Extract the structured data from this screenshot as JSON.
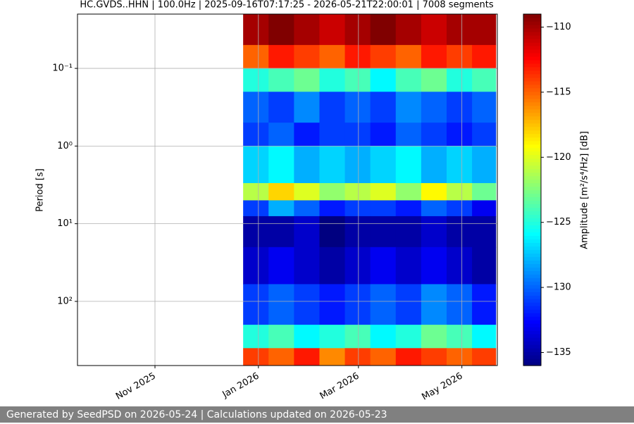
{
  "chart_data": {
    "type": "heatmap",
    "title": "HC.GVDS..HHN | 100.0Hz | 2025-09-16T07:17:25 - 2026-05-21T22:00:01 | 7008 segments",
    "ylabel": "Period [s]",
    "colorbar_label": "Amplitude [m²/s⁴/Hz] [dB]",
    "colormap": "jet",
    "grid": true,
    "yscale": "log",
    "yinverted": true,
    "xlim": [
      "2025-09-16T07:17:25",
      "2026-05-21T22:00:01"
    ],
    "xticks": [
      {
        "value": "2025-11-01",
        "label": "Nov 2025"
      },
      {
        "value": "2026-01-01",
        "label": "Jan 2026"
      },
      {
        "value": "2026-03-01",
        "label": "Mar 2026"
      },
      {
        "value": "2026-05-01",
        "label": "May 2026"
      }
    ],
    "ylim": [
      0.02,
      670
    ],
    "yticks": [
      {
        "value": 0.1,
        "label": "10⁻¹"
      },
      {
        "value": 1,
        "label": "10⁰"
      },
      {
        "value": 10,
        "label": "10¹"
      },
      {
        "value": 100,
        "label": "10²"
      }
    ],
    "clim": [
      -136,
      -109
    ],
    "cticks": [
      {
        "value": -110,
        "label": "−110"
      },
      {
        "value": -115,
        "label": "−115"
      },
      {
        "value": -120,
        "label": "−120"
      },
      {
        "value": -125,
        "label": "−125"
      },
      {
        "value": -130,
        "label": "−130"
      },
      {
        "value": -135,
        "label": "−135"
      }
    ],
    "x_edges": [
      "2025-12-23",
      "2026-01-07",
      "2026-01-22",
      "2026-02-06",
      "2026-02-21",
      "2026-03-08",
      "2026-03-23",
      "2026-04-07",
      "2026-04-22",
      "2026-05-07",
      "2026-05-21"
    ],
    "y_edges": [
      0.02,
      0.05,
      0.1,
      0.2,
      0.5,
      1,
      3,
      5,
      8,
      20,
      60,
      200,
      400,
      670
    ],
    "z": [
      [
        -110,
        -109,
        -110,
        -111,
        -110,
        -109,
        -110,
        -111,
        -110,
        -110
      ],
      [
        -115,
        -113,
        -114,
        -115,
        -113,
        -114,
        -115,
        -113,
        -114,
        -113
      ],
      [
        -125,
        -124,
        -123,
        -125,
        -124,
        -126,
        -124,
        -123,
        -125,
        -124
      ],
      [
        -130,
        -131,
        -129,
        -131,
        -130,
        -131,
        -129,
        -130,
        -131,
        -130
      ],
      [
        -131,
        -130,
        -132,
        -131,
        -131,
        -132,
        -130,
        -131,
        -132,
        -131
      ],
      [
        -127,
        -126,
        -128,
        -127,
        -128,
        -127,
        -126,
        -128,
        -127,
        -128
      ],
      [
        -121,
        -118,
        -120,
        -122,
        -121,
        -120,
        -122,
        -119,
        -121,
        -123
      ],
      [
        -131,
        -128,
        -130,
        -132,
        -131,
        -131,
        -132,
        -130,
        -131,
        -133
      ],
      [
        -135,
        -135,
        -134,
        -136,
        -135,
        -135,
        -135,
        -134,
        -135,
        -135
      ],
      [
        -134,
        -133,
        -134,
        -135,
        -134,
        -133,
        -134,
        -133,
        -134,
        -135
      ],
      [
        -131,
        -130,
        -131,
        -132,
        -131,
        -130,
        -131,
        -129,
        -130,
        -132
      ],
      [
        -125,
        -124,
        -126,
        -125,
        -124,
        -126,
        -125,
        -123,
        -124,
        -126
      ],
      [
        -114,
        -115,
        -113,
        -116,
        -114,
        -115,
        -113,
        -114,
        -115,
        -114
      ]
    ]
  },
  "footer": "Generated by SeedPSD on 2026-05-24 | Calculations updated on 2026-05-23"
}
